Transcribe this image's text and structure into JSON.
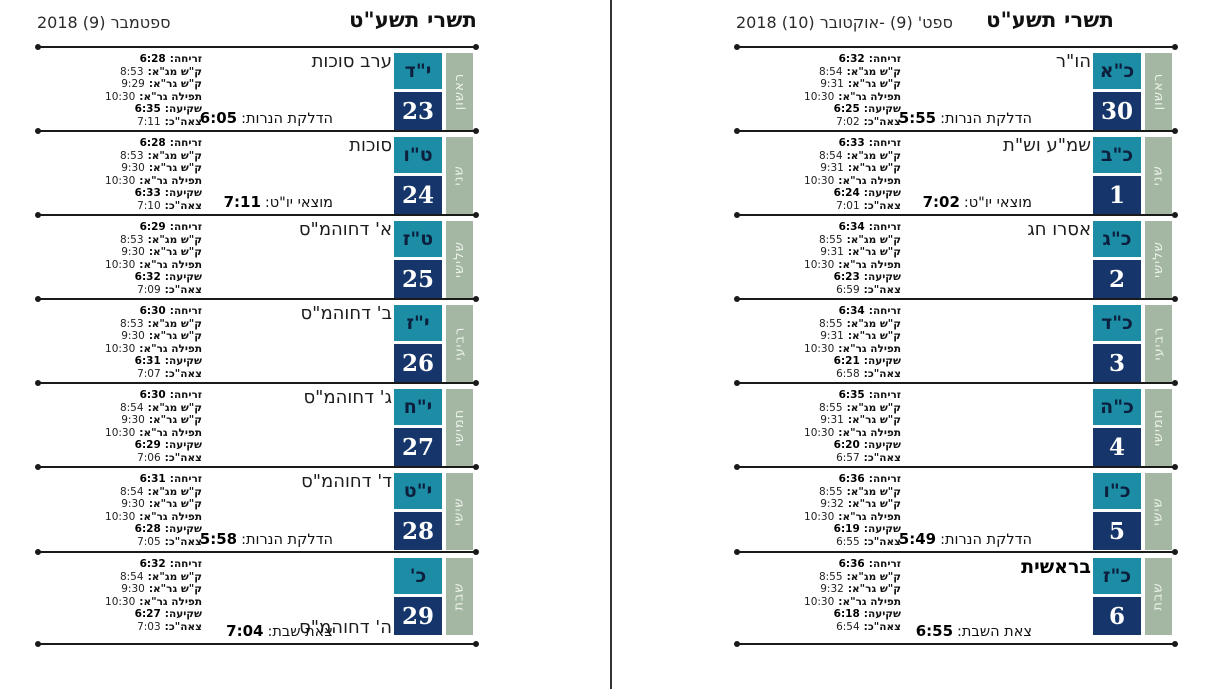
{
  "colors": {
    "teal": "#1d8da6",
    "navy": "#16366b",
    "sage": "#a3b7a3",
    "ink": "#1a1a1a"
  },
  "time_labels": {
    "sunrise": "זריחה:",
    "shema_mga": "ק\"ש מג\"א:",
    "shema_gra": "ק\"ש גר\"א:",
    "tefila_gra": "תפילה גר\"א:",
    "sunset": "שקיעה:",
    "tzeit": "צאה\"כ:"
  },
  "pages": [
    {
      "title": "תשרי תשע\"ט",
      "month_label": "ספטמבר (9) 2018",
      "days": [
        {
          "weekday": "ראשון",
          "hebrew_date": "י\"ד",
          "greg_date": "23",
          "event": "ערב סוכות",
          "event_bold": false,
          "event_at_bottom": false,
          "times": {
            "sunrise": "6:28",
            "shema_mga": "8:53",
            "shema_gra": "9:29",
            "tefila_gra": "10:30",
            "sunset": "6:35",
            "tzeit": "7:11"
          },
          "special": {
            "label": "הדלקת הנרות:",
            "value": "6:05"
          }
        },
        {
          "weekday": "שני",
          "hebrew_date": "ט\"ו",
          "greg_date": "24",
          "event": "סוכות",
          "event_bold": false,
          "event_at_bottom": false,
          "times": {
            "sunrise": "6:28",
            "shema_mga": "8:53",
            "shema_gra": "9:30",
            "tefila_gra": "10:30",
            "sunset": "6:33",
            "tzeit": "7:10"
          },
          "special": {
            "label": "מוצאי יו\"ט:",
            "value": "7:11"
          }
        },
        {
          "weekday": "שלישי",
          "hebrew_date": "ט\"ז",
          "greg_date": "25",
          "event": "א' דחוהמ\"ס",
          "event_bold": false,
          "event_at_bottom": false,
          "times": {
            "sunrise": "6:29",
            "shema_mga": "8:53",
            "shema_gra": "9:30",
            "tefila_gra": "10:30",
            "sunset": "6:32",
            "tzeit": "7:09"
          },
          "special": null
        },
        {
          "weekday": "רביעי",
          "hebrew_date": "י\"ז",
          "greg_date": "26",
          "event": "ב' דחוהמ\"ס",
          "event_bold": false,
          "event_at_bottom": false,
          "times": {
            "sunrise": "6:30",
            "shema_mga": "8:53",
            "shema_gra": "9:30",
            "tefila_gra": "10:30",
            "sunset": "6:31",
            "tzeit": "7:07"
          },
          "special": null
        },
        {
          "weekday": "חמישי",
          "hebrew_date": "י\"ח",
          "greg_date": "27",
          "event": "ג' דחוהמ\"ס",
          "event_bold": false,
          "event_at_bottom": false,
          "times": {
            "sunrise": "6:30",
            "shema_mga": "8:54",
            "shema_gra": "9:30",
            "tefila_gra": "10:30",
            "sunset": "6:29",
            "tzeit": "7:06"
          },
          "special": null
        },
        {
          "weekday": "שישי",
          "hebrew_date": "י\"ט",
          "greg_date": "28",
          "event": "ד' דחוהמ\"ס",
          "event_bold": false,
          "event_at_bottom": false,
          "times": {
            "sunrise": "6:31",
            "shema_mga": "8:54",
            "shema_gra": "9:30",
            "tefila_gra": "10:30",
            "sunset": "6:28",
            "tzeit": "7:05"
          },
          "special": {
            "label": "הדלקת הנרות:",
            "value": "5:58"
          }
        },
        {
          "weekday": "שבת",
          "hebrew_date": "כ'",
          "greg_date": "29",
          "event": "ה' דחוהמ\"ס",
          "event_bold": false,
          "event_at_bottom": true,
          "times": {
            "sunrise": "6:32",
            "shema_mga": "8:54",
            "shema_gra": "9:30",
            "tefila_gra": "10:30",
            "sunset": "6:27",
            "tzeit": "7:03"
          },
          "special": {
            "label": "צאת שבת:",
            "value": "7:04"
          }
        }
      ]
    },
    {
      "title": "תשרי תשע\"ט",
      "month_label": "ספט' (9) -אוקטובר (10) 2018",
      "days": [
        {
          "weekday": "ראשון",
          "hebrew_date": "כ\"א",
          "greg_date": "30",
          "event": "הו\"ר",
          "event_bold": false,
          "event_at_bottom": false,
          "times": {
            "sunrise": "6:32",
            "shema_mga": "8:54",
            "shema_gra": "9:31",
            "tefila_gra": "10:30",
            "sunset": "6:25",
            "tzeit": "7:02"
          },
          "special": {
            "label": "הדלקת הנרות:",
            "value": "5:55"
          }
        },
        {
          "weekday": "שני",
          "hebrew_date": "כ\"ב",
          "greg_date": "1",
          "event": "שמ\"ע וש\"ת",
          "event_bold": false,
          "event_at_bottom": false,
          "times": {
            "sunrise": "6:33",
            "shema_mga": "8:54",
            "shema_gra": "9:31",
            "tefila_gra": "10:30",
            "sunset": "6:24",
            "tzeit": "7:01"
          },
          "special": {
            "label": "מוצאי יו\"ט:",
            "value": "7:02"
          }
        },
        {
          "weekday": "שלישי",
          "hebrew_date": "כ\"ג",
          "greg_date": "2",
          "event": "אסרו חג",
          "event_bold": false,
          "event_at_bottom": false,
          "times": {
            "sunrise": "6:34",
            "shema_mga": "8:55",
            "shema_gra": "9:31",
            "tefila_gra": "10:30",
            "sunset": "6:23",
            "tzeit": "6:59"
          },
          "special": null
        },
        {
          "weekday": "רביעי",
          "hebrew_date": "כ\"ד",
          "greg_date": "3",
          "event": "",
          "event_bold": false,
          "event_at_bottom": false,
          "times": {
            "sunrise": "6:34",
            "shema_mga": "8:55",
            "shema_gra": "9:31",
            "tefila_gra": "10:30",
            "sunset": "6:21",
            "tzeit": "6:58"
          },
          "special": null
        },
        {
          "weekday": "חמישי",
          "hebrew_date": "כ\"ה",
          "greg_date": "4",
          "event": "",
          "event_bold": false,
          "event_at_bottom": false,
          "times": {
            "sunrise": "6:35",
            "shema_mga": "8:55",
            "shema_gra": "9:31",
            "tefila_gra": "10:30",
            "sunset": "6:20",
            "tzeit": "6:57"
          },
          "special": null
        },
        {
          "weekday": "שישי",
          "hebrew_date": "כ\"ו",
          "greg_date": "5",
          "event": "",
          "event_bold": false,
          "event_at_bottom": false,
          "times": {
            "sunrise": "6:36",
            "shema_mga": "8:55",
            "shema_gra": "9:32",
            "tefila_gra": "10:30",
            "sunset": "6:19",
            "tzeit": "6:55"
          },
          "special": {
            "label": "הדלקת הנרות:",
            "value": "5:49"
          }
        },
        {
          "weekday": "שבת",
          "hebrew_date": "כ\"ז",
          "greg_date": "6",
          "event": "בראשית",
          "event_bold": true,
          "event_at_bottom": false,
          "times": {
            "sunrise": "6:36",
            "shema_mga": "8:55",
            "shema_gra": "9:32",
            "tefila_gra": "10:30",
            "sunset": "6:18",
            "tzeit": "6:54"
          },
          "special": {
            "label": "צאת השבת:",
            "value": "6:55"
          }
        }
      ]
    }
  ]
}
